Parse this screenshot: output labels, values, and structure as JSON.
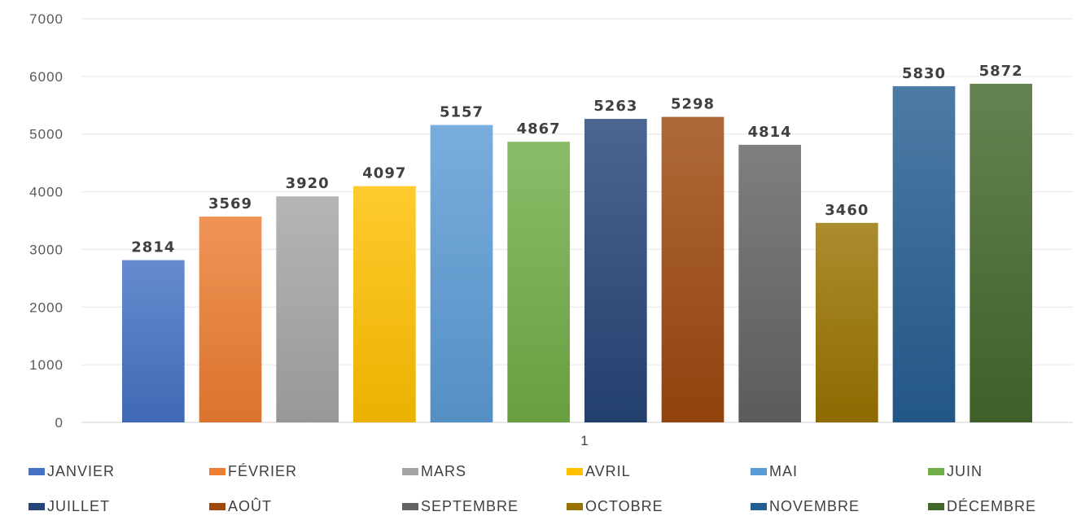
{
  "chart_data": {
    "type": "bar",
    "title": "",
    "xlabel": "",
    "ylabel": "",
    "categories": [
      "1"
    ],
    "ylim": [
      0,
      7000
    ],
    "yticks": [
      0,
      1000,
      2000,
      3000,
      4000,
      5000,
      6000,
      7000
    ],
    "grid": true,
    "legend_position": "bottom",
    "series": [
      {
        "name": "JANVIER",
        "values": [
          2814
        ],
        "color": "#4472c4"
      },
      {
        "name": "FÉVRIER",
        "values": [
          3569
        ],
        "color": "#ed7d31"
      },
      {
        "name": "MARS",
        "values": [
          3920
        ],
        "color": "#a5a5a5"
      },
      {
        "name": "AVRIL",
        "values": [
          4097
        ],
        "color": "#ffc000"
      },
      {
        "name": "MAI",
        "values": [
          5157
        ],
        "color": "#5b9bd5"
      },
      {
        "name": "JUIN",
        "values": [
          4867
        ],
        "color": "#70ad47"
      },
      {
        "name": "JUILLET",
        "values": [
          5263
        ],
        "color": "#264478"
      },
      {
        "name": "AOÛT",
        "values": [
          5298
        ],
        "color": "#9e480e"
      },
      {
        "name": "SEPTEMBRE",
        "values": [
          4814
        ],
        "color": "#636363"
      },
      {
        "name": "OCTOBRE",
        "values": [
          3460
        ],
        "color": "#997300"
      },
      {
        "name": "NOVEMBRE",
        "values": [
          5830
        ],
        "color": "#255e91"
      },
      {
        "name": "DÉCEMBRE",
        "values": [
          5872
        ],
        "color": "#43682b"
      }
    ]
  }
}
